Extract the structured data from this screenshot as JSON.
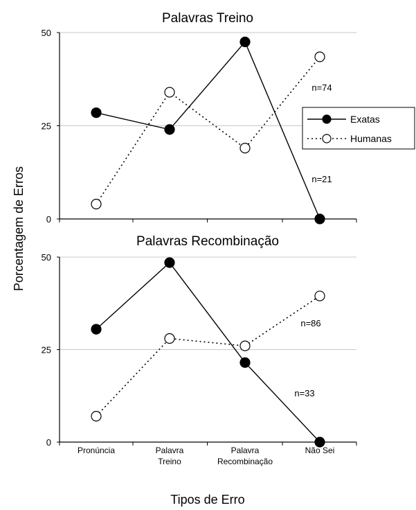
{
  "figure": {
    "ylabel": "Porcentagem de Erros",
    "xlabel": "Tipos de Erro",
    "legend": [
      {
        "label": "Exatas",
        "marker": "filled-circle",
        "line": "solid"
      },
      {
        "label": "Humanas",
        "marker": "open-circle",
        "line": "dotted"
      }
    ]
  },
  "chart_data": [
    {
      "type": "line",
      "title": "Palavras Treino",
      "categories": [
        "Pronúncia",
        "Palavra Treino",
        "Palavra Recombinação",
        "Não Sei"
      ],
      "series": [
        {
          "name": "Exatas",
          "values": [
            28.5,
            24,
            47.5,
            0
          ]
        },
        {
          "name": "Humanas",
          "values": [
            4,
            34,
            19,
            43.5
          ]
        }
      ],
      "ylim": [
        0,
        50
      ],
      "yticks": [
        0,
        25,
        50
      ],
      "grid": true,
      "legend_position": "right",
      "annotations": [
        "n=74",
        "n=21"
      ]
    },
    {
      "type": "line",
      "title": "Palavras Recombinação",
      "categories": [
        "Pronúncia",
        "Palavra Treino",
        "Palavra Recombinação",
        "Não Sei"
      ],
      "category_labels": [
        [
          "Pronúncia"
        ],
        [
          "Palavra",
          "Treino"
        ],
        [
          "Palavra",
          "Recombinação"
        ],
        [
          "Não Sei"
        ]
      ],
      "series": [
        {
          "name": "Exatas",
          "values": [
            30.5,
            48.5,
            21.5,
            0
          ]
        },
        {
          "name": "Humanas",
          "values": [
            7,
            28,
            26,
            39.5
          ]
        }
      ],
      "ylim": [
        0,
        50
      ],
      "yticks": [
        0,
        25,
        50
      ],
      "grid": true,
      "annotations": [
        "n=86",
        "n=33"
      ]
    }
  ]
}
